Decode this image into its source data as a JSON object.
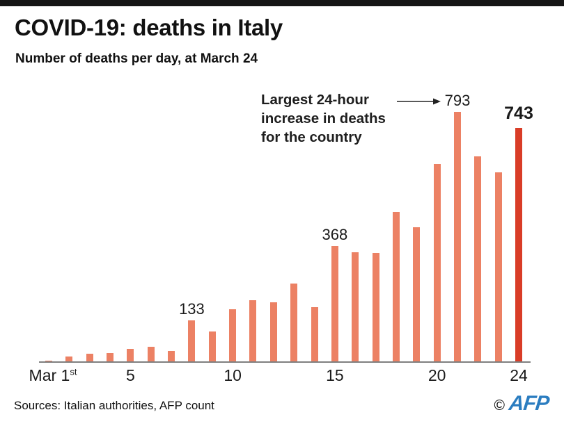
{
  "header": {
    "title": "COVID-19: deaths in Italy",
    "subtitle": "Number of deaths per day, at March 24"
  },
  "annotation": {
    "lines": [
      "Largest 24-hour",
      "increase in deaths",
      "for the country"
    ]
  },
  "chart_data": {
    "type": "bar",
    "title": "COVID-19: deaths in Italy",
    "subtitle": "Number of deaths per day, at March 24",
    "xlabel": "",
    "ylabel": "",
    "grid": false,
    "legend": false,
    "x": [
      "Mar 1",
      "Mar 2",
      "Mar 3",
      "Mar 4",
      "Mar 5",
      "Mar 6",
      "Mar 7",
      "Mar 8",
      "Mar 9",
      "Mar 10",
      "Mar 11",
      "Mar 12",
      "Mar 13",
      "Mar 14",
      "Mar 15",
      "Mar 16",
      "Mar 17",
      "Mar 18",
      "Mar 19",
      "Mar 20",
      "Mar 21",
      "Mar 22",
      "Mar 23",
      "Mar 24"
    ],
    "values": [
      5,
      18,
      27,
      28,
      41,
      49,
      36,
      133,
      97,
      168,
      196,
      189,
      250,
      175,
      368,
      349,
      345,
      475,
      427,
      627,
      793,
      651,
      601,
      743
    ],
    "ylim": [
      0,
      793
    ],
    "bar_color": "#ec8164",
    "highlight_color": "#d93d27",
    "highlight_index": 23,
    "labeled_points": [
      {
        "index": 7,
        "label": "133",
        "emphasis": false
      },
      {
        "index": 14,
        "label": "368",
        "emphasis": false
      },
      {
        "index": 20,
        "label": "793",
        "emphasis": false
      },
      {
        "index": 23,
        "label": "743",
        "emphasis": true
      }
    ],
    "x_ticks": [
      {
        "index": 0,
        "label": "Mar 1",
        "superscript": "st"
      },
      {
        "index": 4,
        "label": "5",
        "superscript": ""
      },
      {
        "index": 9,
        "label": "10",
        "superscript": ""
      },
      {
        "index": 14,
        "label": "15",
        "superscript": ""
      },
      {
        "index": 19,
        "label": "20",
        "superscript": ""
      },
      {
        "index": 23,
        "label": "24",
        "superscript": ""
      }
    ],
    "annotation": "Largest 24-hour increase in deaths for the country"
  },
  "footer": {
    "sources": "Sources: Italian authorities, AFP count",
    "copyright": "©",
    "logo": "AFP"
  }
}
